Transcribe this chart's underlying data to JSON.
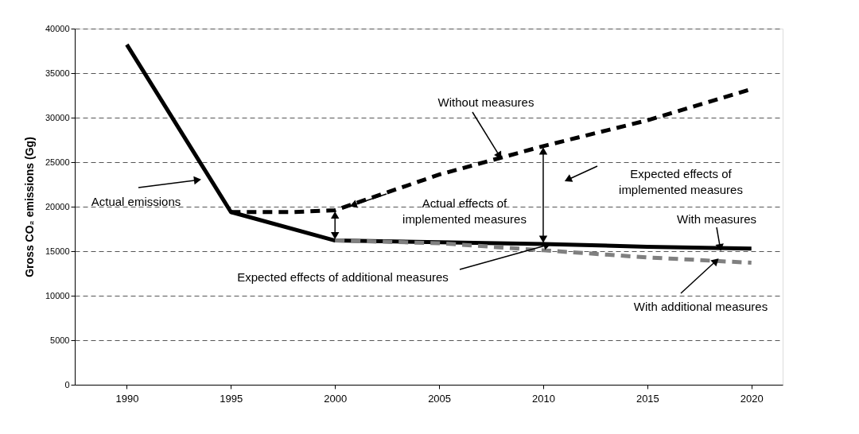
{
  "chart_data": {
    "type": "line",
    "ylabel": "Gross CO₂ emissions (Gg)",
    "xlim": [
      1987.5,
      2021.5
    ],
    "xticks": [
      1990,
      1995,
      2000,
      2005,
      2010,
      2015,
      2020
    ],
    "ylim": [
      0,
      40000
    ],
    "yticks": [
      0,
      5000,
      10000,
      15000,
      20000,
      25000,
      30000,
      35000,
      40000
    ],
    "grid": "y",
    "series": [
      {
        "color": "#000000",
        "line_style": "solid",
        "x": [
          1990,
          1995,
          2000,
          2005,
          2010,
          2015,
          2020
        ],
        "values": [
          38200,
          19400,
          16200,
          16000,
          15800,
          15500,
          15300
        ]
      },
      {
        "color": "#000000",
        "line_style": "dashed",
        "x": [
          1995,
          1998,
          2000,
          2005,
          2010,
          2015,
          2020
        ],
        "values": [
          19400,
          19400,
          19600,
          23600,
          26800,
          29700,
          33200
        ]
      },
      {
        "color": "#808080",
        "line_style": "dashed",
        "x": [
          2000,
          2005,
          2010,
          2015,
          2020
        ],
        "values": [
          16200,
          15900,
          15100,
          14300,
          13700
        ]
      }
    ],
    "annotations": [
      {
        "text": "Actual emissions",
        "x": 1993.4,
        "y": 23000
      },
      {
        "text": "Without measures",
        "x": 2007.9,
        "y": 25700
      },
      "Actual effects of\nimplemented measures",
      "Expected effects of\nimplemented measures",
      {
        "text": "With measures",
        "x": 2018.5,
        "y": 15400
      },
      {
        "text": "With additional measures",
        "x": 2018.3,
        "y": 13900
      },
      {
        "text": "Expected effects of additional measures",
        "x": 2010.2,
        "y": 15700
      }
    ]
  }
}
